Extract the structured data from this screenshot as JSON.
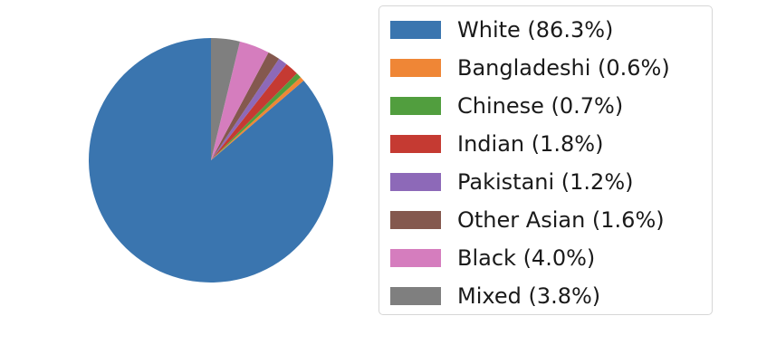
{
  "chart_data": {
    "type": "pie",
    "start_angle_deg": 90,
    "direction": "counterclockwise",
    "legend_position": "right",
    "series": [
      {
        "name": "White",
        "label": "White (86.3%)",
        "value": 86.3,
        "color": "#3a75af"
      },
      {
        "name": "Bangladeshi",
        "label": "Bangladeshi (0.6%)",
        "value": 0.6,
        "color": "#ef8636"
      },
      {
        "name": "Chinese",
        "label": "Chinese (0.7%)",
        "value": 0.7,
        "color": "#519e3e"
      },
      {
        "name": "Indian",
        "label": "Indian (1.8%)",
        "value": 1.8,
        "color": "#c53a32"
      },
      {
        "name": "Pakistani",
        "label": "Pakistani (1.2%)",
        "value": 1.2,
        "color": "#8d69b8"
      },
      {
        "name": "Other Asian",
        "label": "Other Asian (1.6%)",
        "value": 1.6,
        "color": "#84584e"
      },
      {
        "name": "Black",
        "label": "Black (4.0%)",
        "value": 4.0,
        "color": "#d57dbe"
      },
      {
        "name": "Mixed",
        "label": "Mixed (3.8%)",
        "value": 3.8,
        "color": "#7f7f7f"
      }
    ]
  }
}
